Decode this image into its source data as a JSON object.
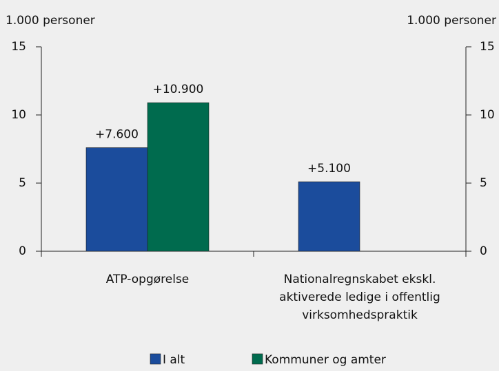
{
  "chart_data": {
    "type": "bar",
    "y_axis_label": "1.000 personer",
    "y2_axis_label": "1.000 personer",
    "categories": [
      "ATP-opgørelse",
      "Nationalregnskabet ekskl. aktiverede ledige i offentlig virksomhedspraktik"
    ],
    "series": [
      {
        "name": "I alt",
        "color": "#1b4c9c",
        "values": [
          7.6,
          5.1
        ],
        "value_labels": [
          "+7.600",
          "+5.100"
        ]
      },
      {
        "name": "Kommuner og amter",
        "color": "#006b4e",
        "values": [
          10.9,
          null
        ],
        "value_labels": [
          "+10.900",
          null
        ]
      }
    ],
    "ylim": [
      0,
      15
    ],
    "yticks": [
      0,
      5,
      10,
      15
    ],
    "y2lim": [
      0,
      15
    ],
    "y2ticks": [
      0,
      5,
      10,
      15
    ],
    "grid": false,
    "legend": "bottom"
  }
}
